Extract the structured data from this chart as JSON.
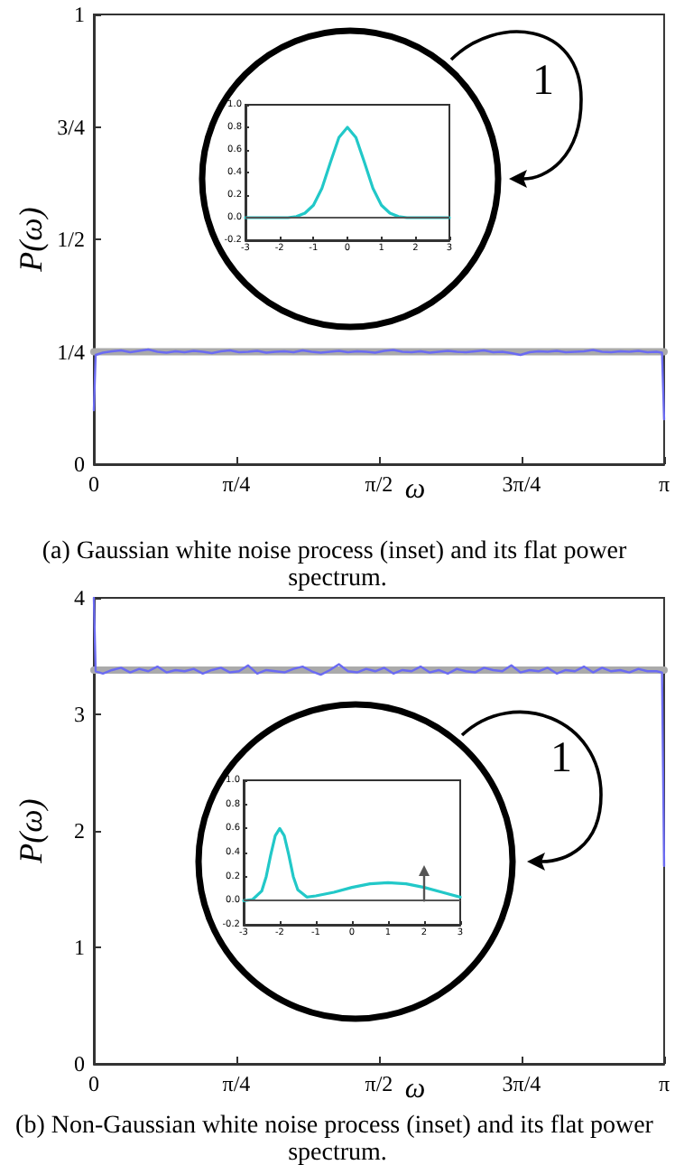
{
  "chart_data": [
    {
      "type": "line",
      "title": "(a) Gaussian white noise process (inset) and its flat power spectrum.",
      "xlabel": "ω",
      "ylabel": "P(ω)",
      "annotations": [
        "1"
      ],
      "x": [
        0,
        0.01,
        0.05,
        0.1,
        0.15,
        0.2,
        0.25,
        0.3,
        0.35,
        0.4,
        0.45,
        0.5,
        0.55,
        0.6,
        0.65,
        0.7,
        0.75,
        0.8,
        0.85,
        0.9,
        0.95,
        1,
        1.05,
        1.1,
        1.15,
        1.2,
        1.25,
        1.3,
        1.35,
        1.4,
        1.45,
        1.5,
        1.55,
        1.6,
        1.65,
        1.7,
        1.75,
        1.8,
        1.85,
        1.9,
        1.95,
        2,
        2.05,
        2.1,
        2.15,
        2.2,
        2.25,
        2.3,
        2.35,
        2.4,
        2.45,
        2.5,
        2.55,
        2.6,
        2.65,
        2.7,
        2.75,
        2.8,
        2.85,
        2.9,
        2.95,
        3,
        3.05,
        3.1,
        3.13,
        3.1416
      ],
      "series": [
        {
          "color": "#aaaaaa",
          "x": [
            0,
            3.1416
          ],
          "values": [
            0.25,
            0.25
          ]
        },
        {
          "color": "#6b6bf2",
          "values": [
            0.12,
            0.243,
            0.248,
            0.251,
            0.253,
            0.249,
            0.252,
            0.255,
            0.25,
            0.248,
            0.251,
            0.249,
            0.252,
            0.25,
            0.247,
            0.251,
            0.253,
            0.249,
            0.25,
            0.252,
            0.248,
            0.25,
            0.251,
            0.249,
            0.253,
            0.25,
            0.248,
            0.25,
            0.252,
            0.249,
            0.251,
            0.25,
            0.248,
            0.252,
            0.254,
            0.25,
            0.249,
            0.251,
            0.248,
            0.25,
            0.252,
            0.25,
            0.249,
            0.251,
            0.253,
            0.249,
            0.25,
            0.247,
            0.243,
            0.249,
            0.251,
            0.25,
            0.252,
            0.249,
            0.25,
            0.251,
            0.254,
            0.25,
            0.249,
            0.251,
            0.25,
            0.252,
            0.249,
            0.25,
            0.248,
            0.1
          ]
        }
      ],
      "xlim": [
        0,
        3.1416
      ],
      "xticks": [
        0,
        {
          "value": 0.7854,
          "label": "π/4"
        },
        {
          "value": 1.5708,
          "label": "π/2"
        },
        {
          "value": 2.3562,
          "label": "3π/4"
        },
        {
          "value": 3.1416,
          "label": "π"
        }
      ],
      "ylim": [
        0,
        1
      ],
      "yticks": [
        0,
        {
          "value": 0.25,
          "label": "1/4"
        },
        {
          "value": 0.5,
          "label": "1/2"
        },
        {
          "value": 0.75,
          "label": "3/4"
        },
        1
      ],
      "grid": false,
      "marker": "none",
      "line_style": "solid"
    },
    {
      "type": "line",
      "x": [
        -3,
        -2.75,
        -2.5,
        -2.25,
        -2,
        -1.75,
        -1.5,
        -1.25,
        -1,
        -0.75,
        -0.5,
        -0.25,
        0,
        0.25,
        0.5,
        0.75,
        1,
        1.25,
        1.5,
        1.75,
        2,
        2.25,
        2.5,
        2.75,
        3
      ],
      "series": [
        {
          "color": "#22c8c8",
          "values": [
            0,
            0,
            0,
            0,
            0,
            0,
            0.01,
            0.04,
            0.11,
            0.26,
            0.49,
            0.71,
            0.8,
            0.71,
            0.49,
            0.26,
            0.11,
            0.04,
            0.01,
            0,
            0,
            0,
            0,
            0,
            0
          ]
        }
      ],
      "xlim": [
        -3,
        3
      ],
      "xticks": [
        -3,
        -2,
        -1,
        0,
        1,
        2,
        3
      ],
      "ylim": [
        -0.2,
        1
      ],
      "yticks": [
        {
          "value": -0.2,
          "label": "-0.2"
        },
        {
          "value": 0,
          "label": "0.0"
        },
        0.2,
        0.4,
        0.6,
        0.8,
        {
          "value": 1,
          "label": "1.0"
        }
      ],
      "ref_lines": [
        {
          "axis": "y",
          "value": 0,
          "color": "#555555"
        }
      ],
      "grid": false,
      "marker": "none",
      "line_style": "solid"
    },
    {
      "type": "line",
      "title": "(b) Non-Gaussian white noise process (inset) and its flat power spectrum.",
      "xlabel": "ω",
      "ylabel": "P(ω)",
      "annotations": [
        "1"
      ],
      "x": [
        0,
        0.01,
        0.05,
        0.1,
        0.15,
        0.2,
        0.25,
        0.3,
        0.35,
        0.4,
        0.45,
        0.5,
        0.55,
        0.6,
        0.65,
        0.7,
        0.75,
        0.8,
        0.85,
        0.9,
        0.95,
        1,
        1.05,
        1.1,
        1.15,
        1.2,
        1.25,
        1.3,
        1.35,
        1.4,
        1.45,
        1.5,
        1.55,
        1.6,
        1.65,
        1.7,
        1.75,
        1.8,
        1.85,
        1.9,
        1.95,
        2,
        2.05,
        2.1,
        2.15,
        2.2,
        2.25,
        2.3,
        2.35,
        2.4,
        2.45,
        2.5,
        2.55,
        2.6,
        2.65,
        2.7,
        2.75,
        2.8,
        2.85,
        2.9,
        2.95,
        3,
        3.05,
        3.1,
        3.13,
        3.1416
      ],
      "series": [
        {
          "color": "#aaaaaa",
          "x": [
            0,
            3.1416
          ],
          "values": [
            3.38,
            3.38
          ]
        },
        {
          "color": "#6b6bf2",
          "values": [
            4,
            3.37,
            3.35,
            3.38,
            3.4,
            3.36,
            3.39,
            3.37,
            3.41,
            3.36,
            3.38,
            3.37,
            3.39,
            3.35,
            3.38,
            3.4,
            3.36,
            3.37,
            3.42,
            3.35,
            3.38,
            3.37,
            3.36,
            3.39,
            3.41,
            3.37,
            3.34,
            3.38,
            3.43,
            3.37,
            3.36,
            3.39,
            3.37,
            3.4,
            3.35,
            3.38,
            3.37,
            3.41,
            3.36,
            3.38,
            3.35,
            3.39,
            3.37,
            3.36,
            3.4,
            3.38,
            3.37,
            3.42,
            3.36,
            3.38,
            3.37,
            3.4,
            3.35,
            3.38,
            3.37,
            3.41,
            3.36,
            3.4,
            3.37,
            3.38,
            3.36,
            3.39,
            3.37,
            3.37,
            3.36,
            1.7
          ]
        }
      ],
      "xlim": [
        0,
        3.1416
      ],
      "xticks": [
        0,
        {
          "value": 0.7854,
          "label": "π/4"
        },
        {
          "value": 1.5708,
          "label": "π/2"
        },
        {
          "value": 2.3562,
          "label": "3π/4"
        },
        {
          "value": 3.1416,
          "label": "π"
        }
      ],
      "ylim": [
        0,
        4
      ],
      "yticks": [
        0,
        1,
        2,
        3,
        4
      ],
      "grid": false,
      "marker": "none",
      "line_style": "solid"
    },
    {
      "type": "line",
      "x": [
        -3,
        -2.75,
        -2.5,
        -2.375,
        -2.25,
        -2.125,
        -2,
        -1.875,
        -1.75,
        -1.625,
        -1.5,
        -1.25,
        -1,
        -0.5,
        0,
        0.5,
        1,
        1.5,
        2,
        2.5,
        3
      ],
      "series": [
        {
          "color": "#22c8c8",
          "values": [
            0,
            0.01,
            0.08,
            0.2,
            0.38,
            0.54,
            0.6,
            0.54,
            0.38,
            0.2,
            0.09,
            0.03,
            0.04,
            0.07,
            0.11,
            0.14,
            0.15,
            0.14,
            0.11,
            0.07,
            0.03
          ]
        },
        {
          "color": "#555555",
          "x": [
            2,
            2
          ],
          "values": [
            0,
            0.25
          ],
          "marker": "triangle"
        }
      ],
      "xlim": [
        -3,
        3
      ],
      "xticks": [
        -3,
        -2,
        -1,
        0,
        1,
        2,
        3
      ],
      "ylim": [
        -0.2,
        1
      ],
      "yticks": [
        {
          "value": -0.2,
          "label": "-0.2"
        },
        {
          "value": 0,
          "label": "0.0"
        },
        0.2,
        0.4,
        0.6,
        0.8,
        {
          "value": 1,
          "label": "1.0"
        }
      ],
      "ref_lines": [
        {
          "axis": "y",
          "value": 0,
          "color": "#555555"
        }
      ],
      "grid": false,
      "marker": "none",
      "line_style": "solid"
    }
  ]
}
